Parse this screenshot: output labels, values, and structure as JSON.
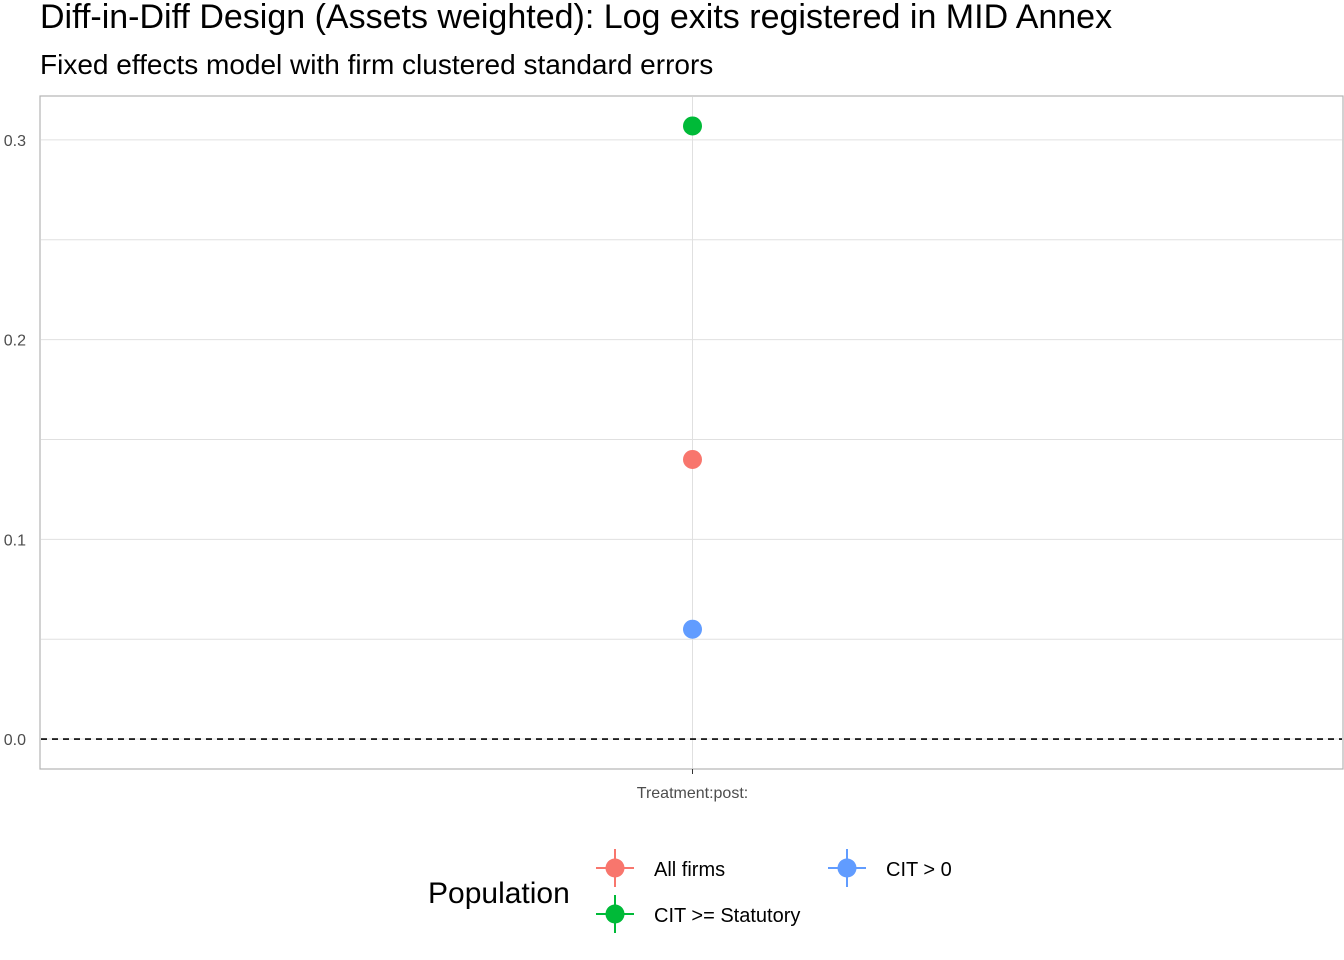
{
  "chart_data": {
    "type": "scatter",
    "title": "Diff-in-Diff Design (Assets weighted): Log exits registered in MID Annex",
    "subtitle": "Fixed effects model with firm clustered standard errors",
    "xlabel": "",
    "ylabel": "",
    "categories": [
      "Treatment:post:"
    ],
    "ylim": [
      -0.015,
      0.322
    ],
    "yticks": [
      "0.0",
      "0.1",
      "0.2",
      "0.3"
    ],
    "ytick_values": [
      0.0,
      0.1,
      0.2,
      0.3
    ],
    "grid": true,
    "reference_line": 0,
    "legend": {
      "title": "Population",
      "placement": "bottom",
      "entries": [
        "All firms",
        "CIT > 0",
        "CIT >= Statutory"
      ]
    },
    "series": [
      {
        "name": "All firms",
        "color": "#F8766D",
        "values": [
          0.14
        ],
        "ci": [
          [
            0.14,
            0.14
          ]
        ]
      },
      {
        "name": "CIT >= Statutory",
        "color": "#00BA38",
        "values": [
          0.307
        ],
        "ci": [
          [
            0.307,
            0.307
          ]
        ]
      },
      {
        "name": "CIT > 0",
        "color": "#619CFF",
        "values": [
          0.055
        ],
        "ci": [
          [
            0.055,
            0.055
          ]
        ]
      }
    ]
  }
}
